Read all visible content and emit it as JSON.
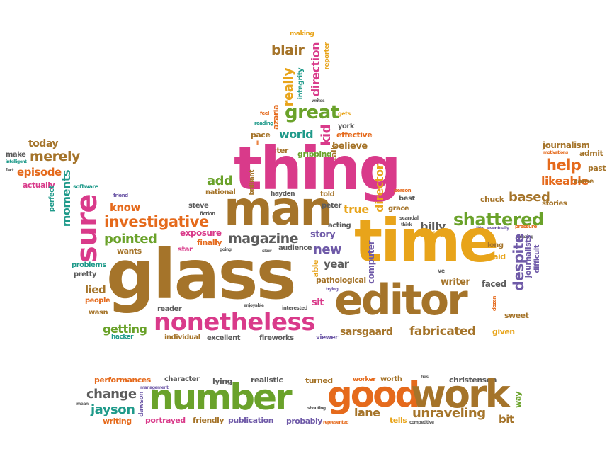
{
  "colors": {
    "gold": "#e8a41a",
    "brown": "#a5742a",
    "magenta": "#d93a8a",
    "green": "#6aa22a",
    "orange": "#e56a1c",
    "teal": "#1f9a8a",
    "gray": "#5c5c5c",
    "purple": "#6f5aa8"
  },
  "words": {
    "making": "making",
    "blair": "blair",
    "really": "really",
    "integrity": "integrity",
    "direction": "direction",
    "reporter": "reporter",
    "writes": "writes",
    "great": "great",
    "gets": "gets",
    "azaria": "azaria",
    "feel": "feel",
    "reading": "reading",
    "pace": "pace",
    "ll": "ll",
    "world": "world",
    "kid": "kid",
    "york": "york",
    "effective": "effective",
    "talk": "talk",
    "believe": "believe",
    "later": "later",
    "gripping": "gripping",
    "today": "today",
    "make": "make",
    "merely": "merely",
    "intelligent": "intelligent",
    "fact": "fact",
    "episode": "episode",
    "actually": "actually",
    "moments": "moments",
    "perfect": "perfect",
    "software": "software",
    "friend": "friend",
    "thing": "thing",
    "add": "add",
    "national": "national",
    "brilliant": "brilliant",
    "hayden": "hayden",
    "told": "told",
    "director": "director",
    "person": "person",
    "journalism": "journalism",
    "motivations": "motivations",
    "admit": "admit",
    "help": "help",
    "past": "past",
    "likeable": "likeable",
    "came": "came",
    "sure": "sure",
    "know": "know",
    "man": "man",
    "steve": "steve",
    "fiction": "fiction",
    "peter": "peter",
    "true": "true",
    "grace": "grace",
    "best": "best",
    "scandal": "scandal",
    "chuck": "chuck",
    "based": "based",
    "stories": "stories",
    "investigative": "investigative",
    "shattered": "shattered",
    "pointed": "pointed",
    "exposure": "exposure",
    "magazine": "magazine",
    "story": "story",
    "acting": "acting",
    "billy": "billy",
    "surface": "surface",
    "think": "think",
    "life": "life",
    "eventually": "eventually",
    "pressure": "pressure",
    "amazing": "amazing",
    "wants": "wants",
    "finally": "finally",
    "star": "star",
    "going": "going",
    "slow": "slow",
    "audience": "audience",
    "new": "new",
    "able": "able",
    "time": "time",
    "long": "long",
    "said": "said",
    "despite": "despite",
    "journalists": "journalists",
    "difficult": "difficult",
    "problems": "problems",
    "pretty": "pretty",
    "glass": "glass",
    "year": "year",
    "computer": "computer",
    "ve": "ve",
    "pathological": "pathological",
    "trying": "trying",
    "writer": "writer",
    "faced": "faced",
    "lied": "lied",
    "people": "people",
    "wasn": "wasn",
    "reader": "reader",
    "enjoyable": "enjoyable",
    "interested": "interested",
    "sit": "sit",
    "editor": "editor",
    "dozen": "dozen",
    "sweet": "sweet",
    "getting": "getting",
    "nonetheless": "nonetheless",
    "sarsgaard": "sarsgaard",
    "fabricated": "fabricated",
    "given": "given",
    "hacker": "hacker",
    "individual": "individual",
    "excellent": "excellent",
    "fireworks": "fireworks",
    "viewer": "viewer",
    "performances": "performances",
    "character": "character",
    "lying": "lying",
    "realistic": "realistic",
    "turned": "turned",
    "worker": "worker",
    "worth": "worth",
    "ties": "ties",
    "christensen": "christensen",
    "change": "change",
    "management": "management",
    "dawson": "dawson",
    "mean": "mean",
    "number": "number",
    "good": "good",
    "work": "work",
    "way": "way",
    "jayson": "jayson",
    "shouting": "shouting",
    "lane": "lane",
    "unraveling": "unraveling",
    "writing": "writing",
    "portrayed": "portrayed",
    "friendly": "friendly",
    "publication": "publication",
    "probably": "probably",
    "represented": "represented",
    "tells": "tells",
    "competitive": "competitive",
    "bit": "bit"
  }
}
